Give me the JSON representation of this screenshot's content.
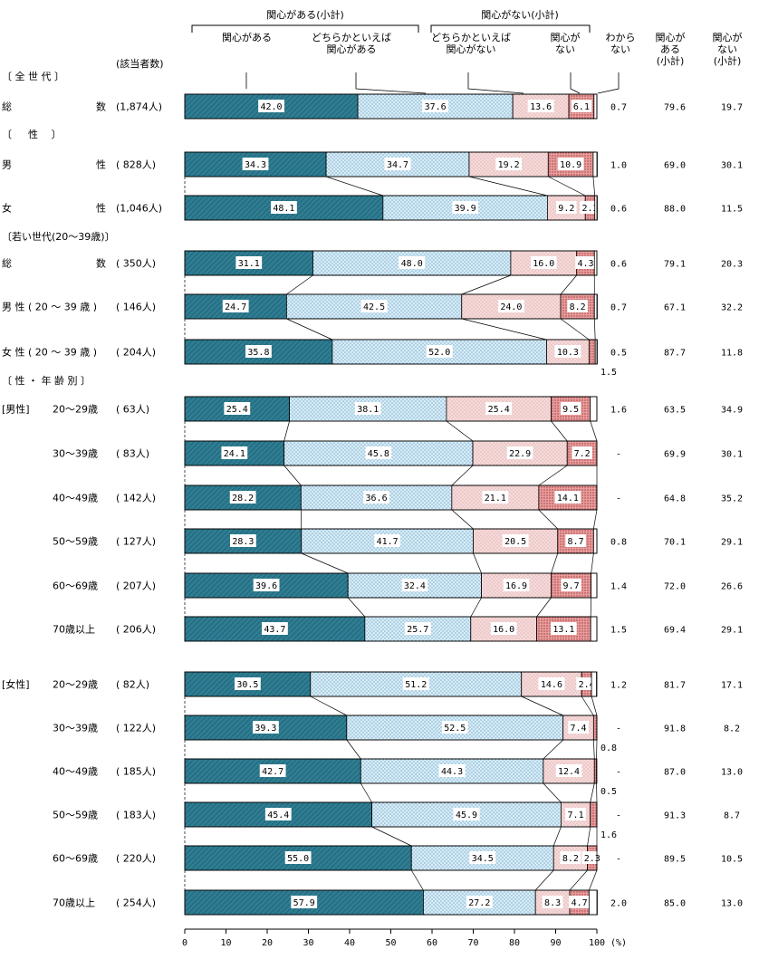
{
  "chart_data": {
    "type": "bar",
    "stacked": true,
    "orientation": "horizontal",
    "x_unit": "(%)",
    "xlim": [
      0,
      100
    ],
    "x_ticks": [
      "0",
      "10",
      "20",
      "30",
      "40",
      "50",
      "60",
      "70",
      "80",
      "90",
      "100"
    ],
    "count_header": "(該当者数)",
    "group_headers": [
      "関心がある(小計)",
      "関心がない(小計)"
    ],
    "segment_headers": [
      "関心がある",
      "どちらかといえば\n関心がある",
      "どちらかといえば\n関心がない",
      "関心が\nない"
    ],
    "extra_headers": [
      "わから\nない",
      "関心が\nある\n(小計)",
      "関心が\nない\n(小計)"
    ],
    "series": [
      {
        "name": "関心がある",
        "color": "#2e7d92"
      },
      {
        "name": "どちらかといえば関心がある",
        "color": "#d8ecf7"
      },
      {
        "name": "どちらかといえば関心がない",
        "color": "#f6dada"
      },
      {
        "name": "関心がない",
        "color": "#e99c9c"
      },
      {
        "name": "わからない",
        "color": "#ffffff"
      }
    ],
    "sections": [
      {
        "label": "〔 全 世 代 〕",
        "rows": [
          {
            "label": "総　　　数",
            "count": "(1,874人)",
            "values": [
              42.0,
              37.6,
              13.6,
              6.1,
              0.7
            ],
            "sub_yes": "79.6",
            "sub_no": "19.7",
            "dk": "0.7"
          }
        ]
      },
      {
        "label": "〔 　 性　 〕",
        "rows": [
          {
            "label": "男　　　性",
            "count": "( 828人)",
            "values": [
              34.3,
              34.7,
              19.2,
              10.9,
              1.0
            ],
            "sub_yes": "69.0",
            "sub_no": "30.1",
            "dk": "1.0"
          },
          {
            "label": "女　　　性",
            "count": "(1,046人)",
            "values": [
              48.1,
              39.9,
              9.2,
              2.3,
              0.6
            ],
            "sub_yes": "88.0",
            "sub_no": "11.5",
            "dk": "0.6"
          }
        ]
      },
      {
        "label": "〔若い世代(20～39歳)〕",
        "rows": [
          {
            "label": "総　　　数",
            "count": "( 350人)",
            "values": [
              31.1,
              48.0,
              16.0,
              4.3,
              0.6
            ],
            "sub_yes": "79.1",
            "sub_no": "20.3",
            "dk": "0.6"
          },
          {
            "label": "男 性 ( 20 ～ 39 歳 )",
            "count": "( 146人)",
            "values": [
              24.7,
              42.5,
              24.0,
              8.2,
              0.7
            ],
            "sub_yes": "67.1",
            "sub_no": "32.2",
            "dk": "0.7"
          },
          {
            "label": "女 性 ( 20 ～ 39 歳 )",
            "count": "( 204人)",
            "values": [
              35.8,
              52.0,
              10.3,
              1.5,
              0.5
            ],
            "sub_yes": "87.7",
            "sub_no": "11.8",
            "dk": "0.5",
            "below": "1.5"
          }
        ]
      },
      {
        "label": "〔 性 ・ 年 齢 別 〕",
        "rows": [
          {
            "group": "[男性]",
            "label": "20～29歳",
            "count": "(  63人)",
            "values": [
              25.4,
              38.1,
              25.4,
              9.5,
              1.6
            ],
            "sub_yes": "63.5",
            "sub_no": "34.9",
            "dk": "1.6"
          },
          {
            "label": "30～39歳",
            "count": "(  83人)",
            "values": [
              24.1,
              45.8,
              22.9,
              7.2,
              0.0
            ],
            "sub_yes": "69.9",
            "sub_no": "30.1",
            "dk": "-"
          },
          {
            "label": "40～49歳",
            "count": "( 142人)",
            "values": [
              28.2,
              36.6,
              21.1,
              14.1,
              0.0
            ],
            "sub_yes": "64.8",
            "sub_no": "35.2",
            "dk": "-"
          },
          {
            "label": "50～59歳",
            "count": "( 127人)",
            "values": [
              28.3,
              41.7,
              20.5,
              8.7,
              0.8
            ],
            "sub_yes": "70.1",
            "sub_no": "29.1",
            "dk": "0.8"
          },
          {
            "label": "60～69歳",
            "count": "( 207人)",
            "values": [
              39.6,
              32.4,
              16.9,
              9.7,
              1.4
            ],
            "sub_yes": "72.0",
            "sub_no": "26.6",
            "dk": "1.4"
          },
          {
            "label": "70歳以上",
            "count": "( 206人)",
            "values": [
              43.7,
              25.7,
              16.0,
              13.1,
              1.5
            ],
            "sub_yes": "69.4",
            "sub_no": "29.1",
            "dk": "1.5"
          }
        ]
      },
      {
        "label": "",
        "rows": [
          {
            "group": "[女性]",
            "label": "20～29歳",
            "count": "(  82人)",
            "values": [
              30.5,
              51.2,
              14.6,
              2.4,
              1.2
            ],
            "sub_yes": "81.7",
            "sub_no": "17.1",
            "dk": "1.2"
          },
          {
            "label": "30～39歳",
            "count": "( 122人)",
            "values": [
              39.3,
              52.5,
              7.4,
              0.8,
              0.0
            ],
            "sub_yes": "91.8",
            "sub_no": "8.2",
            "dk": "-",
            "below": "0.8"
          },
          {
            "label": "40～49歳",
            "count": "( 185人)",
            "values": [
              42.7,
              44.3,
              12.4,
              0.5,
              0.0
            ],
            "sub_yes": "87.0",
            "sub_no": "13.0",
            "dk": "-",
            "below": "0.5"
          },
          {
            "label": "50～59歳",
            "count": "( 183人)",
            "values": [
              45.4,
              45.9,
              7.1,
              1.6,
              0.0
            ],
            "sub_yes": "91.3",
            "sub_no": "8.7",
            "dk": "-",
            "below": "1.6"
          },
          {
            "label": "60～69歳",
            "count": "( 220人)",
            "values": [
              55.0,
              34.5,
              8.2,
              2.3,
              0.0
            ],
            "sub_yes": "89.5",
            "sub_no": "10.5",
            "dk": "-"
          },
          {
            "label": "70歳以上",
            "count": "( 254人)",
            "values": [
              57.9,
              27.2,
              8.3,
              4.7,
              2.0
            ],
            "sub_yes": "85.0",
            "sub_no": "13.0",
            "dk": "2.0"
          }
        ]
      }
    ]
  }
}
